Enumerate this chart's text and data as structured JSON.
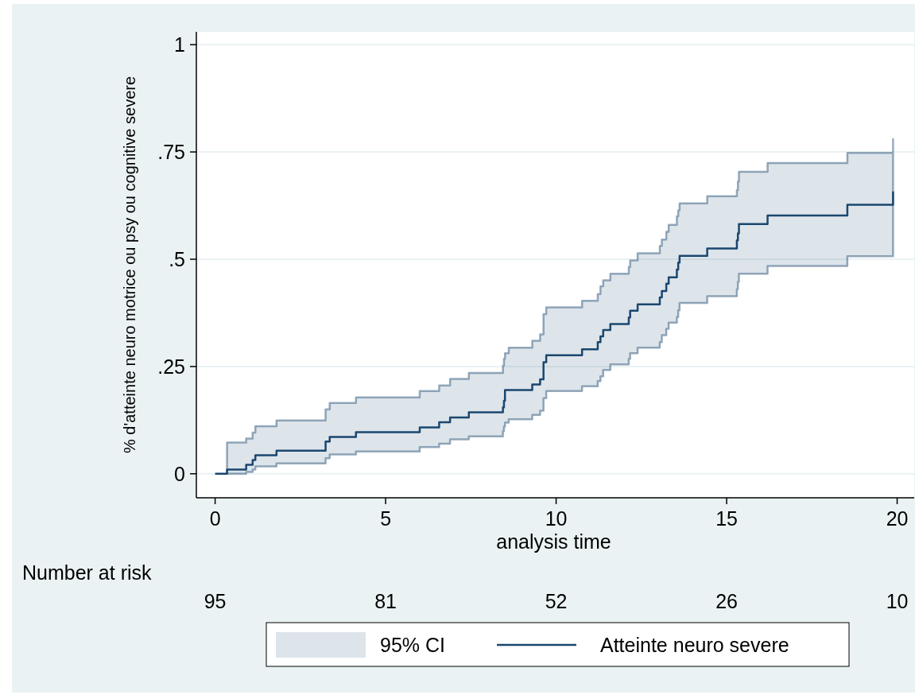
{
  "chart_data": {
    "type": "step",
    "xlabel": "analysis time",
    "ylabel": "% d'atteinte neuro motrice ou psy ou cognitive severe",
    "xlim": [
      -0.55,
      20.5
    ],
    "ylim": [
      -0.056,
      1.03
    ],
    "xticks": [
      0,
      5,
      10,
      15,
      20
    ],
    "yticks": [
      0,
      {
        "value": 0.25,
        "label": ".25"
      },
      {
        "value": 0.5,
        "label": ".5"
      },
      {
        "value": 0.75,
        "label": ".75"
      },
      1
    ],
    "grid": "y",
    "legend": "bottom",
    "x": [
      0,
      0.35,
      0.91,
      1.1,
      1.18,
      1.8,
      3.24,
      3.36,
      4.13,
      6.0,
      6.57,
      6.89,
      7.44,
      8.44,
      8.47,
      8.5,
      8.61,
      9.3,
      9.53,
      9.63,
      9.71,
      10.76,
      11.22,
      11.3,
      11.38,
      11.59,
      12.13,
      12.17,
      12.39,
      13.04,
      13.1,
      13.23,
      13.3,
      13.54,
      13.58,
      13.62,
      14.43,
      15.3,
      15.33,
      15.36,
      16.2,
      18.54,
      19.88
    ],
    "series": [
      {
        "name": "Atteinte neuro severe",
        "color": "#1a476f",
        "values": [
          0,
          0.01,
          0.021,
          0.032,
          0.043,
          0.054,
          0.075,
          0.086,
          0.097,
          0.108,
          0.12,
          0.131,
          0.143,
          0.155,
          0.17,
          0.195,
          0.195,
          0.208,
          0.22,
          0.26,
          0.276,
          0.29,
          0.307,
          0.32,
          0.335,
          0.349,
          0.364,
          0.38,
          0.395,
          0.411,
          0.426,
          0.443,
          0.458,
          0.476,
          0.492,
          0.508,
          0.525,
          0.544,
          0.56,
          0.582,
          0.602,
          0.627,
          0.658
        ],
        "upper": [
          null,
          0.073,
          0.082,
          0.096,
          0.111,
          0.124,
          0.15,
          0.165,
          0.178,
          0.193,
          0.206,
          0.221,
          0.235,
          0.252,
          0.268,
          0.281,
          0.294,
          0.31,
          0.325,
          0.372,
          0.388,
          0.403,
          0.419,
          0.437,
          0.451,
          0.466,
          0.482,
          0.497,
          0.514,
          0.531,
          0.546,
          0.564,
          0.58,
          0.6,
          0.614,
          0.63,
          0.647,
          0.661,
          0.681,
          0.704,
          0.724,
          0.748,
          0.78
        ],
        "lower": [
          null,
          0,
          0.004,
          0.01,
          0.017,
          0.024,
          0.036,
          0.045,
          0.052,
          0.062,
          0.07,
          0.08,
          0.087,
          0.099,
          0.11,
          0.119,
          0.127,
          0.137,
          0.147,
          0.176,
          0.193,
          0.204,
          0.216,
          0.227,
          0.242,
          0.255,
          0.268,
          0.281,
          0.294,
          0.307,
          0.323,
          0.338,
          0.352,
          0.365,
          0.381,
          0.398,
          0.414,
          0.43,
          0.447,
          0.466,
          0.484,
          0.507,
          0.533
        ]
      }
    ],
    "annotations": [
      "95% CI",
      "Number at risk",
      "95",
      "81",
      "52",
      "26",
      "10"
    ]
  }
}
